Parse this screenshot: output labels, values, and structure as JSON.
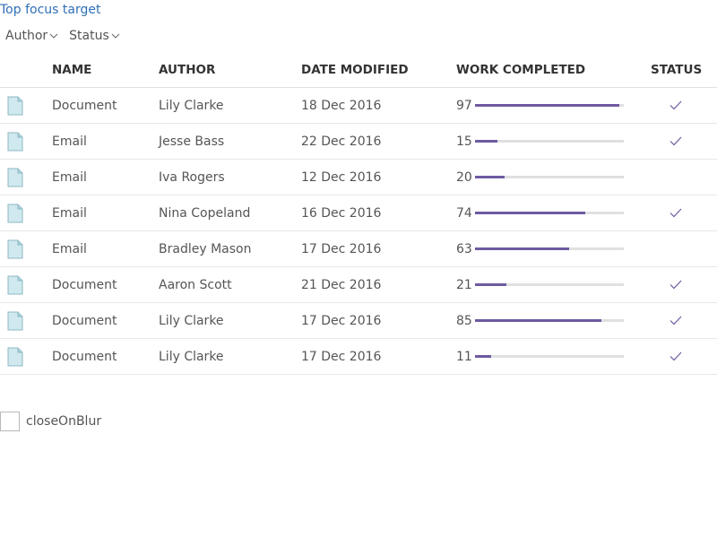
{
  "top_link": "Top focus target",
  "filters": [
    {
      "label": "Author"
    },
    {
      "label": "Status"
    }
  ],
  "columns": {
    "name": "NAME",
    "author": "AUTHOR",
    "date": "DATE MODIFIED",
    "work": "WORK COMPLETED",
    "status": "STATUS"
  },
  "rows": [
    {
      "name": "Document",
      "author": "Lily Clarke",
      "date": "18 Dec 2016",
      "work": "97",
      "progress": 0.97,
      "done": true
    },
    {
      "name": "Email",
      "author": "Jesse Bass",
      "date": "22 Dec 2016",
      "work": "15",
      "progress": 0.15,
      "done": true
    },
    {
      "name": "Email",
      "author": "Iva Rogers",
      "date": "12 Dec 2016",
      "work": "20",
      "progress": 0.2,
      "done": false
    },
    {
      "name": "Email",
      "author": "Nina Copeland",
      "date": "16 Dec 2016",
      "work": "74",
      "progress": 0.74,
      "done": true
    },
    {
      "name": "Email",
      "author": "Bradley Mason",
      "date": "17 Dec 2016",
      "work": "63",
      "progress": 0.63,
      "done": false
    },
    {
      "name": "Document",
      "author": "Aaron Scott",
      "date": "21 Dec 2016",
      "work": "21",
      "progress": 0.21,
      "done": true
    },
    {
      "name": "Document",
      "author": "Lily Clarke",
      "date": "17 Dec 2016",
      "work": "85",
      "progress": 0.85,
      "done": true
    },
    {
      "name": "Document",
      "author": "Lily Clarke",
      "date": "17 Dec 2016",
      "work": "11",
      "progress": 0.11,
      "done": true
    }
  ],
  "checkbox": {
    "label": "closeOnBlur",
    "checked": false
  },
  "colors": {
    "link": "#2f6fb5",
    "progress_fill": "#6e5aa0",
    "progress_track": "#e0e0e0",
    "check": "#6e5aa0"
  },
  "icons": {
    "file": "file-icon",
    "check": "check-icon",
    "chevron": "chevron-down-icon"
  }
}
